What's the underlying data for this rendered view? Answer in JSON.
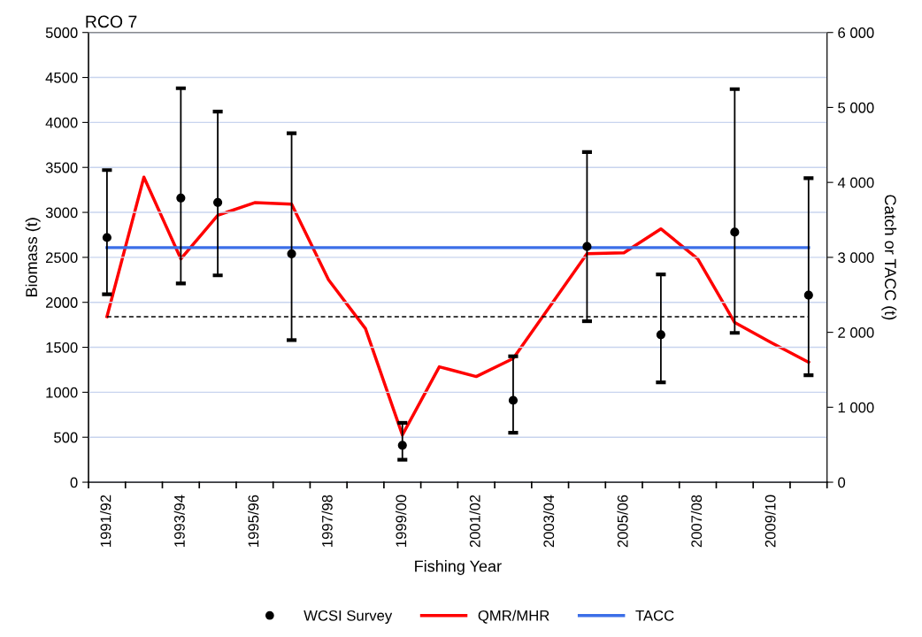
{
  "chart_data": {
    "type": "line",
    "title": "RCO 7",
    "xlabel": "Fishing Year",
    "ylabel": "Biomass (t)",
    "y2label": "Catch or TACC (t)",
    "categories": [
      "1991/92",
      null,
      "1993/94",
      null,
      "1995/96",
      null,
      "1997/98",
      null,
      "1999/00",
      null,
      "2001/02",
      null,
      "2003/04",
      null,
      "2005/06",
      null,
      "2007/08",
      null,
      "2009/10",
      null
    ],
    "series": [
      {
        "name": "WCSI Survey",
        "type": "scatter",
        "color": "#000000",
        "marker": "circle",
        "values": [
          2720,
          null,
          3160,
          3110,
          null,
          2540,
          null,
          null,
          410,
          null,
          null,
          910,
          null,
          2620,
          null,
          1640,
          null,
          2780,
          null,
          2080
        ],
        "errors": [
          [
            2090,
            3470
          ],
          null,
          [
            2210,
            4380
          ],
          [
            2300,
            4120
          ],
          null,
          [
            1580,
            3880
          ],
          null,
          null,
          [
            250,
            660
          ],
          null,
          null,
          [
            550,
            1400
          ],
          null,
          [
            1790,
            3670
          ],
          null,
          [
            1110,
            2310
          ],
          null,
          [
            1660,
            4370
          ],
          null,
          [
            1190,
            3380
          ]
        ]
      },
      {
        "name": "QMR/MHR",
        "axis": "y2",
        "color": "#ff0000",
        "values": [
          2210,
          4070,
          2980,
          3560,
          3730,
          3710,
          2700,
          2050,
          630,
          1540,
          1410,
          1650,
          2350,
          3050,
          3060,
          3380,
          2980,
          2130,
          1860,
          1600
        ]
      },
      {
        "name": "TACC",
        "axis": "y2",
        "color": "#3b6ee8",
        "values": [
          3130,
          3130,
          3130,
          3130,
          3130,
          3130,
          3130,
          3130,
          3130,
          3130,
          3130,
          3130,
          3130,
          3130,
          3130,
          3130,
          3130,
          3130,
          3130,
          3130
        ]
      }
    ],
    "ref_lines": [
      {
        "axis": "y",
        "value": 1840,
        "color": "#000000",
        "line_style": "dashed"
      }
    ],
    "ylim": [
      0,
      5000
    ],
    "yticks": [
      0,
      500,
      1000,
      1500,
      2000,
      2500,
      3000,
      3500,
      4000,
      4500,
      5000
    ],
    "y2lim": [
      0,
      6000
    ],
    "y2ticks": [
      0,
      {
        "value": 1000,
        "label": "1 000"
      },
      {
        "value": 2000,
        "label": "2 000"
      },
      {
        "value": 3000,
        "label": "3 000"
      },
      {
        "value": 4000,
        "label": "4 000"
      },
      {
        "value": 5000,
        "label": "5 000"
      },
      {
        "value": 6000,
        "label": "6 000"
      }
    ],
    "grid": "y",
    "legend": "bottom"
  }
}
